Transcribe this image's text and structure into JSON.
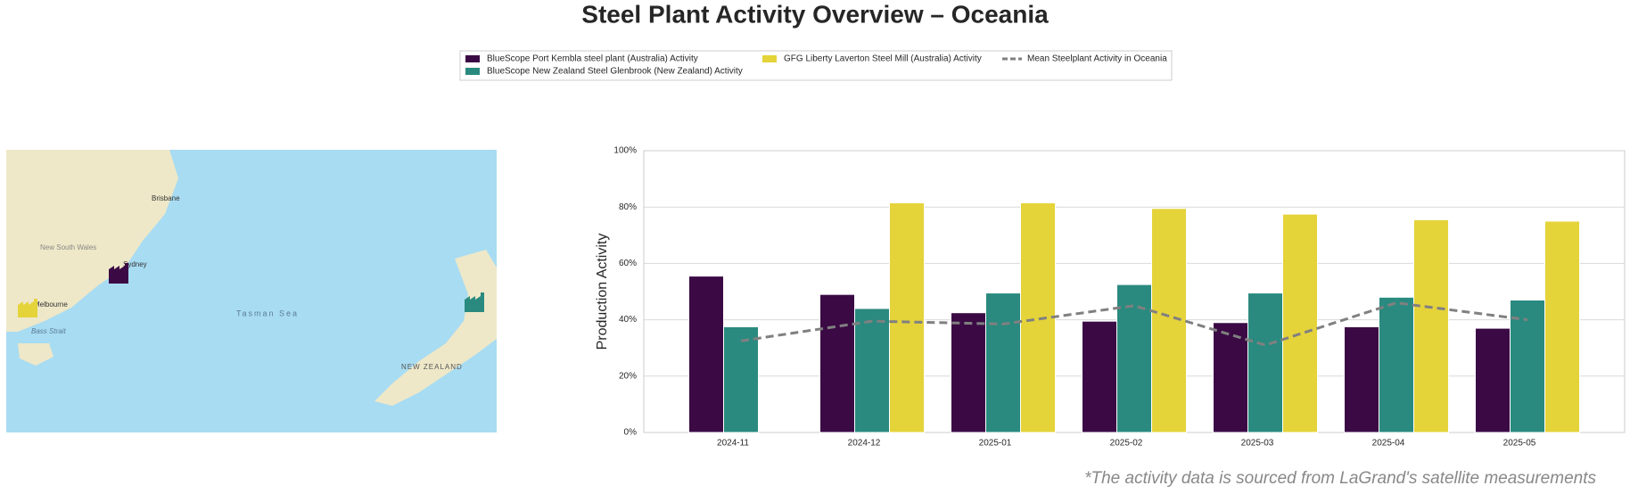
{
  "chart_data": {
    "type": "bar",
    "title": "Steel Plant Activity Overview – Oceania",
    "ylabel": "Production Activity",
    "footnote": "*The activity data is sourced from LaGrand's satellite measurements",
    "categories": [
      "2024-11",
      "2024-12",
      "2025-01",
      "2025-02",
      "2025-03",
      "2025-04",
      "2025-05"
    ],
    "series": [
      {
        "name": "BlueScope Port Kembla steel plant (Australia) Activity",
        "color": "#3b0a45",
        "values": [
          55.5,
          49,
          42.5,
          39.5,
          39,
          37.5,
          37
        ]
      },
      {
        "name": "BlueScope New Zealand Steel Glenbrook (New Zealand) Activity",
        "color": "#2a8a7f",
        "values": [
          37.5,
          44,
          49.5,
          52.5,
          49.5,
          48,
          47
        ]
      },
      {
        "name": "GFG Liberty Laverton Steel Mill (Australia) Activity",
        "color": "#e5d33a",
        "values": [
          null,
          81.5,
          81.5,
          79.5,
          77.5,
          75.5,
          75
        ]
      },
      {
        "name": "Mean Steelplant Activity in Oceania",
        "color": "#808080",
        "mark": "line",
        "dashed": true,
        "values": [
          32.5,
          39.5,
          38.5,
          45,
          31,
          46,
          40
        ]
      }
    ],
    "ylim": [
      0,
      100
    ],
    "yticks": [
      {
        "value": 0,
        "label": "0%"
      },
      {
        "value": 20,
        "label": "20%"
      },
      {
        "value": 40,
        "label": "40%"
      },
      {
        "value": 60,
        "label": "60%"
      },
      {
        "value": 80,
        "label": "80%"
      },
      {
        "value": 100,
        "label": "100%"
      }
    ],
    "grid": true,
    "legend": "top"
  },
  "map": {
    "labels": [
      "Brisbane",
      "Sydney",
      "Melbourne",
      "Bass Strait",
      "Tasman Sea",
      "NEW ZEALAND",
      "New South Wales"
    ]
  }
}
